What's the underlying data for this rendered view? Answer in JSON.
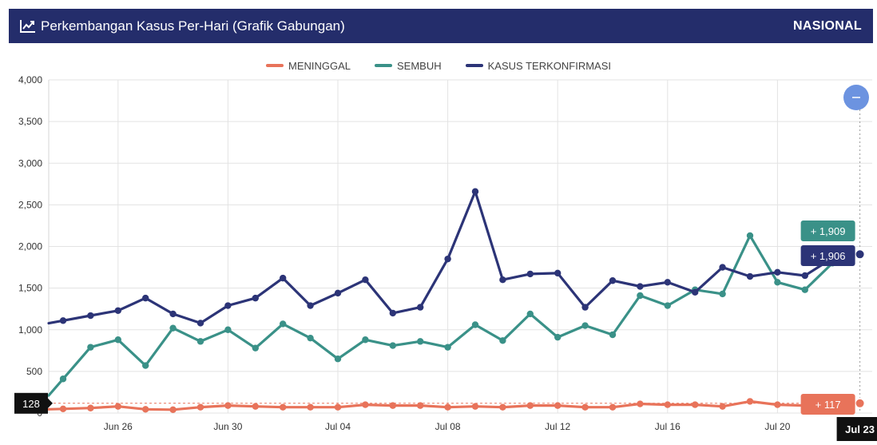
{
  "header": {
    "title": "Perkembangan Kasus Per-Hari (Grafik Gabungan)",
    "scope": "NASIONAL",
    "icon": "trend-line-icon"
  },
  "colors": {
    "header_bg": "#242d6b",
    "meninggal": "#e8735a",
    "sembuh": "#3a9188",
    "kasus": "#2c3477",
    "reset_button": "#6c93e0"
  },
  "chart_data": {
    "type": "line",
    "ylim": [
      0,
      4000
    ],
    "yticks": [
      0,
      500,
      1000,
      1500,
      2000,
      2500,
      3000,
      3500,
      4000
    ],
    "ytick_labels": [
      "0",
      "500",
      "1,000",
      "1,500",
      "2,000",
      "2,500",
      "3,000",
      "3,500",
      "4,000"
    ],
    "x_dates": [
      "Jun 24",
      "Jun 25",
      "Jun 26",
      "Jun 27",
      "Jun 28",
      "Jun 29",
      "Jun 30",
      "Jul 01",
      "Jul 02",
      "Jul 03",
      "Jul 04",
      "Jul 05",
      "Jul 06",
      "Jul 07",
      "Jul 08",
      "Jul 09",
      "Jul 10",
      "Jul 11",
      "Jul 12",
      "Jul 13",
      "Jul 14",
      "Jul 15",
      "Jul 16",
      "Jul 17",
      "Jul 18",
      "Jul 19",
      "Jul 20",
      "Jul 21",
      "Jul 22",
      "Jul 23"
    ],
    "xtick_labels": [
      {
        "date": "Jun 26",
        "label": "Jun 26"
      },
      {
        "date": "Jun 30",
        "label": "Jun 30"
      },
      {
        "date": "Jul 04",
        "label": "Jul 04"
      },
      {
        "date": "Jul 08",
        "label": "Jul 08"
      },
      {
        "date": "Jul 12",
        "label": "Jul 12"
      },
      {
        "date": "Jul 16",
        "label": "Jul 16"
      },
      {
        "date": "Jul 20",
        "label": "Jul 20"
      }
    ],
    "grid": true,
    "legend_position": "top-center",
    "series": [
      {
        "name": "MENINGGAL",
        "color": "#e8735a",
        "values": [
          50,
          60,
          80,
          45,
          40,
          70,
          90,
          80,
          70,
          70,
          70,
          100,
          90,
          90,
          70,
          80,
          70,
          90,
          90,
          70,
          70,
          110,
          100,
          100,
          80,
          140,
          100,
          90,
          90,
          117
        ]
      },
      {
        "name": "SEMBUH",
        "color": "#3a9188",
        "values": [
          410,
          790,
          880,
          570,
          1020,
          860,
          1000,
          780,
          1070,
          900,
          650,
          880,
          810,
          860,
          790,
          1060,
          870,
          1190,
          910,
          1050,
          940,
          1410,
          1290,
          1480,
          1430,
          2130,
          1570,
          1480,
          1800,
          1909
        ]
      },
      {
        "name": "KASUS TERKONFIRMASI",
        "color": "#2c3477",
        "values": [
          1110,
          1170,
          1230,
          1380,
          1190,
          1080,
          1290,
          1380,
          1620,
          1290,
          1440,
          1600,
          1200,
          1270,
          1850,
          2660,
          1600,
          1670,
          1680,
          1270,
          1590,
          1520,
          1570,
          1450,
          1750,
          1640,
          1690,
          1650,
          1860,
          1906
        ]
      }
    ],
    "tooltip": {
      "date": "Jul 23",
      "labels": {
        "sembuh": "+ 1,909",
        "kasus": "+ 1,906",
        "meninggal": "+ 117"
      }
    },
    "crosshair_y_label": "128"
  }
}
